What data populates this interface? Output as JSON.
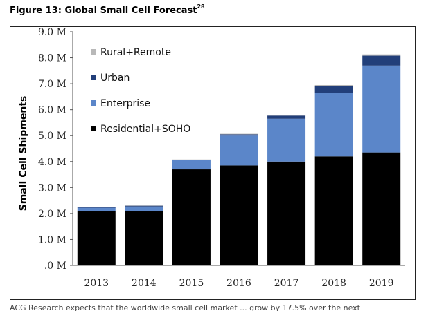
{
  "figure": {
    "title": "Figure 13: Global Small Cell Forecast",
    "footnote_ref": "28"
  },
  "body_text_fragment": "ACG Research expects that the worldwide small cell market ... grow by 17.5% over the next",
  "chart_data": {
    "type": "bar",
    "stacked": true,
    "title": "",
    "xlabel": "",
    "ylabel": "Small Cell Shipments",
    "categories": [
      "2013",
      "2014",
      "2015",
      "2016",
      "2017",
      "2018",
      "2019"
    ],
    "ylim": [
      0,
      9.0
    ],
    "ytick_values": [
      0,
      1.0,
      2.0,
      3.0,
      4.0,
      5.0,
      6.0,
      7.0,
      8.0,
      9.0
    ],
    "ytick_labels": [
      ".0 M",
      "1.0 M",
      "2.0 M",
      "3.0 M",
      "4.0 M",
      "5.0 M",
      "6.0 M",
      "7.0 M",
      "8.0 M",
      "9.0 M"
    ],
    "grid": false,
    "legend_position": "top-left",
    "series": [
      {
        "name": "Residential+SOHO",
        "color": "#000000",
        "values": [
          2.1,
          2.1,
          3.7,
          3.85,
          4.0,
          4.2,
          4.35
        ]
      },
      {
        "name": "Enterprise",
        "color": "#5b86c9",
        "values": [
          0.12,
          0.17,
          0.35,
          1.15,
          1.65,
          2.45,
          3.35
        ]
      },
      {
        "name": "Urban",
        "color": "#223f7a",
        "values": [
          0.02,
          0.03,
          0.02,
          0.05,
          0.12,
          0.25,
          0.38
        ]
      },
      {
        "name": "Rural+Remote",
        "color": "#b8b8b8",
        "values": [
          0.01,
          0.01,
          0.01,
          0.02,
          0.03,
          0.05,
          0.05
        ]
      }
    ]
  }
}
